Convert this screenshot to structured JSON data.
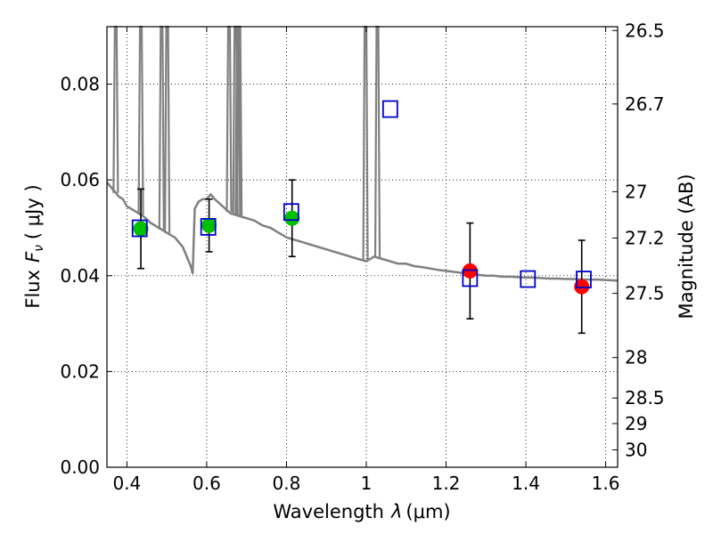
{
  "chart_data": {
    "type": "scatter",
    "title": "",
    "xlabel_text": "Wavelength",
    "xlabel_symbol": "λ",
    "xlabel_unit": "(μm)",
    "ylabel_text": "Flux",
    "ylabel_symbol": "F",
    "ylabel_sub": "ν",
    "ylabel_unit": "( μJy )",
    "y2label": "Magnitude (AB)",
    "xlim": [
      0.35,
      1.63
    ],
    "ylim": [
      0.0,
      0.092
    ],
    "grid": true,
    "xticks": [
      0.4,
      0.6,
      0.8,
      1.0,
      1.2,
      1.4,
      1.6
    ],
    "xtick_labels": [
      "0.4",
      "0.6",
      "0.8",
      "1",
      "1.2",
      "1.4",
      "1.6"
    ],
    "yticks": [
      0.0,
      0.02,
      0.04,
      0.06,
      0.08
    ],
    "ytick_labels": [
      "0.00",
      "0.02",
      "0.04",
      "0.06",
      "0.08"
    ],
    "y2ticks": [
      {
        "label": "26.5",
        "mag": 26.5
      },
      {
        "label": "26.7",
        "mag": 26.7
      },
      {
        "label": "27",
        "mag": 27.0
      },
      {
        "label": "27.2",
        "mag": 27.2
      },
      {
        "label": "27.5",
        "mag": 27.5
      },
      {
        "label": "28",
        "mag": 28.0
      },
      {
        "label": "28.5",
        "mag": 28.5
      },
      {
        "label": "29",
        "mag": 29.0
      },
      {
        "label": "30",
        "mag": 30.0
      }
    ],
    "colors": {
      "model": "#808080",
      "optical": "#00c000",
      "nir": "#ff0000",
      "box_edge": "#0000cc",
      "error": "#000000"
    },
    "model_spectrum": {
      "x": [
        0.35,
        0.36,
        0.37,
        0.38,
        0.39,
        0.4,
        0.42,
        0.44,
        0.46,
        0.48,
        0.5,
        0.52,
        0.54,
        0.56,
        0.565,
        0.57,
        0.58,
        0.59,
        0.6,
        0.61,
        0.62,
        0.64,
        0.66,
        0.68,
        0.7,
        0.72,
        0.74,
        0.76,
        0.78,
        0.8,
        0.82,
        0.84,
        0.86,
        0.88,
        0.9,
        0.92,
        0.94,
        0.96,
        0.98,
        1.0,
        1.02,
        1.04,
        1.06,
        1.08,
        1.1,
        1.12,
        1.14,
        1.16,
        1.18,
        1.2,
        1.22,
        1.24,
        1.26,
        1.28,
        1.3,
        1.32,
        1.34,
        1.36,
        1.38,
        1.4,
        1.42,
        1.44,
        1.46,
        1.48,
        1.5,
        1.52,
        1.54,
        1.56,
        1.58,
        1.6,
        1.63
      ],
      "y": [
        0.0595,
        0.0585,
        0.0575,
        0.0565,
        0.056,
        0.0545,
        0.0535,
        0.0525,
        0.051,
        0.05,
        0.049,
        0.048,
        0.046,
        0.042,
        0.0405,
        0.054,
        0.0555,
        0.056,
        0.056,
        0.057,
        0.056,
        0.0545,
        0.053,
        0.0525,
        0.052,
        0.0515,
        0.0505,
        0.05,
        0.049,
        0.048,
        0.0475,
        0.047,
        0.0465,
        0.046,
        0.0455,
        0.045,
        0.0445,
        0.044,
        0.0435,
        0.043,
        0.044,
        0.0435,
        0.043,
        0.0425,
        0.0425,
        0.042,
        0.0418,
        0.0415,
        0.0412,
        0.041,
        0.0408,
        0.0406,
        0.0404,
        0.0402,
        0.04,
        0.04,
        0.0398,
        0.0398,
        0.0397,
        0.0396,
        0.0396,
        0.0395,
        0.0394,
        0.0394,
        0.0393,
        0.0393,
        0.0392,
        0.0392,
        0.0392,
        0.0391,
        0.039
      ]
    },
    "emission_lines": [
      {
        "x": 0.372,
        "peak": 0.092
      },
      {
        "x": 0.435,
        "peak": 0.092
      },
      {
        "x": 0.487,
        "peak": 0.092
      },
      {
        "x": 0.501,
        "peak": 0.092
      },
      {
        "x": 0.656,
        "peak": 0.092
      },
      {
        "x": 0.672,
        "peak": 0.092
      },
      {
        "x": 0.678,
        "peak": 0.092
      },
      {
        "x": 0.682,
        "peak": 0.092
      },
      {
        "x": 0.998,
        "peak": 0.092
      },
      {
        "x": 1.028,
        "peak": 0.092
      }
    ],
    "series": [
      {
        "marker": "circle",
        "color": "#00c000",
        "points": [
          {
            "x": 0.435,
            "y": 0.0498,
            "yerr": 0.0083
          },
          {
            "x": 0.606,
            "y": 0.0505,
            "yerr": 0.0055
          },
          {
            "x": 0.814,
            "y": 0.052,
            "yerr": 0.008
          }
        ]
      },
      {
        "marker": "circle",
        "color": "#ff0000",
        "points": [
          {
            "x": 1.26,
            "y": 0.041,
            "yerr": 0.01
          },
          {
            "x": 1.54,
            "y": 0.0377,
            "yerr": 0.0097
          }
        ]
      },
      {
        "marker": "square-open",
        "color": "#0000cc",
        "points": [
          {
            "x": 0.432,
            "y": 0.0499
          },
          {
            "x": 0.604,
            "y": 0.0502
          },
          {
            "x": 0.812,
            "y": 0.0533
          },
          {
            "x": 1.06,
            "y": 0.0748
          },
          {
            "x": 1.26,
            "y": 0.0395
          },
          {
            "x": 1.405,
            "y": 0.0393
          },
          {
            "x": 1.545,
            "y": 0.0392
          }
        ]
      }
    ]
  }
}
